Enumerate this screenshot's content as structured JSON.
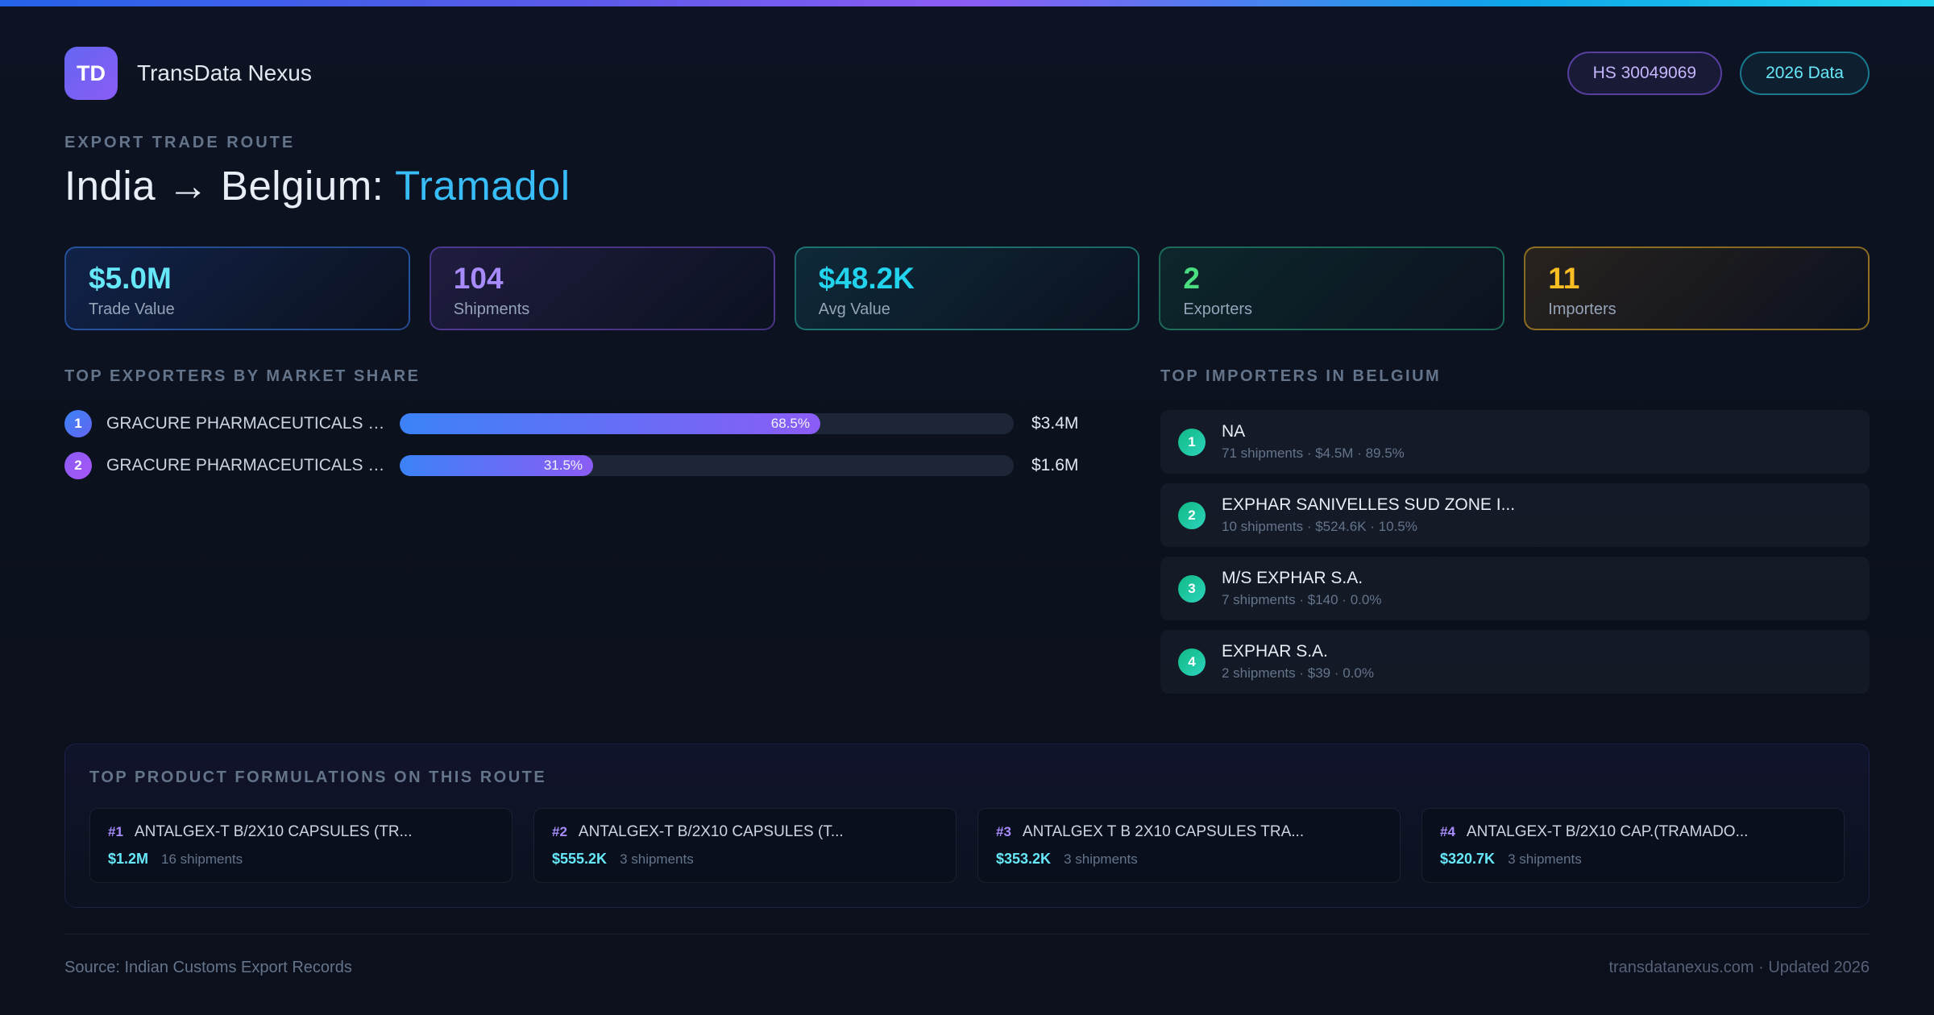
{
  "colors": {
    "accent_sky": "#38bdf8",
    "accent_cyan": "#67e8f9",
    "accent_purple": "#a78bfa",
    "accent_green": "#4ade80",
    "accent_amber": "#fbbf24",
    "accent_teal": "#2dd4bf"
  },
  "header": {
    "logo_text": "TD",
    "app_name": "TransData Nexus",
    "hs_badge": "HS 30049069",
    "year_badge": "2026 Data"
  },
  "hero": {
    "eyebrow": "EXPORT TRADE ROUTE",
    "title_main": "India → Belgium: ",
    "title_accent": "Tramadol",
    "accent_color": "#38bdf8"
  },
  "stats": [
    {
      "value": "$5.0M",
      "label": "Trade Value",
      "color": "#67e8f9"
    },
    {
      "value": "104",
      "label": "Shipments",
      "color": "#a78bfa"
    },
    {
      "value": "$48.2K",
      "label": "Avg Value",
      "color": "#22d3ee"
    },
    {
      "value": "2",
      "label": "Exporters",
      "color": "#4ade80"
    },
    {
      "value": "11",
      "label": "Importers",
      "color": "#fbbf24"
    }
  ],
  "exporters": {
    "title": "TOP EXPORTERS BY MARKET SHARE",
    "items": [
      {
        "rank": "1",
        "name": "GRACURE PHARMACEUTICALS LI...",
        "share": "68.5%",
        "value": "$3.4M"
      },
      {
        "rank": "2",
        "name": "GRACURE PHARMACEUTICALS LI...",
        "share": "31.5%",
        "value": "$1.6M"
      }
    ]
  },
  "importers": {
    "title": "TOP IMPORTERS IN BELGIUM",
    "items": [
      {
        "rank": "1",
        "name": "NA",
        "meta": "71 shipments · $4.5M · 89.5%"
      },
      {
        "rank": "2",
        "name": "EXPHAR SANIVELLES SUD ZONE I...",
        "meta": "10 shipments · $524.6K · 10.5%"
      },
      {
        "rank": "3",
        "name": "M/S EXPHAR S.A.",
        "meta": "7 shipments · $140 · 0.0%"
      },
      {
        "rank": "4",
        "name": "EXPHAR S.A.",
        "meta": "2 shipments · $39 · 0.0%"
      }
    ]
  },
  "products": {
    "title": "TOP PRODUCT FORMULATIONS ON THIS ROUTE",
    "items": [
      {
        "rank": "#1",
        "name": "ANTALGEX-T  B/2X10 CAPSULES (TR...",
        "value": "$1.2M",
        "shipments": "16 shipments"
      },
      {
        "rank": "#2",
        "name": "ANTALGEX-T  B/2X10 CAPSULES (T...",
        "value": "$555.2K",
        "shipments": "3 shipments"
      },
      {
        "rank": "#3",
        "name": "ANTALGEX T B 2X10 CAPSULES TRA...",
        "value": "$353.2K",
        "shipments": "3 shipments"
      },
      {
        "rank": "#4",
        "name": "ANTALGEX-T  B/2X10 CAP.(TRAMADO...",
        "value": "$320.7K",
        "shipments": "3 shipments"
      }
    ]
  },
  "footer": {
    "source": "Source: Indian Customs Export Records",
    "site": "transdatanexus.com · Updated 2026"
  }
}
